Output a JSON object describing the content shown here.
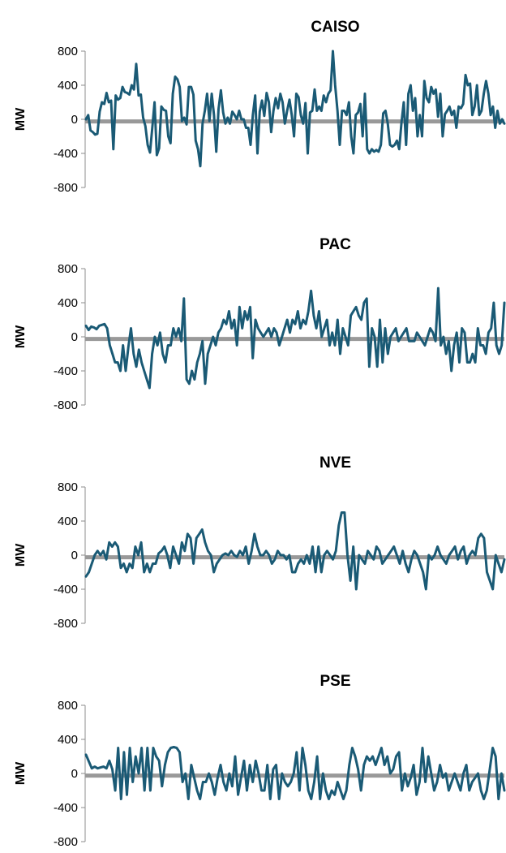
{
  "figure": {
    "series_color": "#1a5a75",
    "zero_line_color": "#999999",
    "axis_color": "#8c8c8c"
  },
  "chart_data": [
    {
      "type": "line",
      "title": "CAISO",
      "ylabel": "MW",
      "xlabel": "",
      "ylim": [
        -800,
        800
      ],
      "yticks": [
        800,
        400,
        0,
        -400,
        -800
      ],
      "ytick_labels": [
        "800",
        "400",
        "0",
        "-400",
        "-800"
      ],
      "grid": false,
      "series": [
        {
          "values": [
            0,
            50,
            -130,
            -150,
            -180,
            -170,
            90,
            200,
            180,
            310,
            200,
            220,
            -350,
            280,
            230,
            250,
            380,
            320,
            310,
            290,
            400,
            350,
            650,
            280,
            290,
            20,
            -80,
            -300,
            -390,
            -100,
            200,
            -420,
            -340,
            150,
            110,
            100,
            -200,
            -280,
            300,
            500,
            470,
            380,
            -20,
            20,
            -60,
            380,
            380,
            290,
            -250,
            -350,
            -550,
            -50,
            100,
            300,
            -20,
            300,
            50,
            -380,
            120,
            340,
            80,
            -50,
            20,
            -50,
            90,
            50,
            0,
            100,
            0,
            0,
            -100,
            -100,
            -300,
            50,
            280,
            -400,
            90,
            220,
            40,
            310,
            200,
            -150,
            100,
            250,
            130,
            300,
            200,
            -50,
            100,
            230,
            50,
            -200,
            300,
            260,
            50,
            -50,
            190,
            -400,
            80,
            100,
            350,
            100,
            150,
            100,
            280,
            200,
            300,
            340,
            800,
            400,
            100,
            -300,
            100,
            100,
            50,
            200,
            -200,
            -400,
            50,
            80,
            180,
            -200,
            300,
            -350,
            -400,
            -350,
            -380,
            -360,
            -380,
            -300,
            70,
            100,
            -50,
            -300,
            -320,
            -300,
            -250,
            -350,
            -40,
            200,
            -300,
            300,
            400,
            100,
            250,
            -200,
            50,
            -200,
            450,
            250,
            200,
            380,
            300,
            350,
            30,
            300,
            -200,
            60,
            100,
            150,
            50,
            100,
            -100,
            150,
            130,
            180,
            520,
            400,
            420,
            50,
            150,
            400,
            50,
            100,
            300,
            450,
            300,
            50,
            150,
            -100,
            100,
            -50,
            0,
            -50
          ]
        }
      ]
    },
    {
      "type": "line",
      "title": "PAC",
      "ylabel": "MW",
      "xlabel": "",
      "ylim": [
        -800,
        800
      ],
      "yticks": [
        800,
        400,
        0,
        -400,
        -800
      ],
      "ytick_labels": [
        "800",
        "400",
        "0",
        "-400",
        "-800"
      ],
      "grid": false,
      "series": [
        {
          "values": [
            130,
            80,
            120,
            110,
            90,
            130,
            140,
            150,
            100,
            -100,
            -200,
            -300,
            -300,
            -400,
            -100,
            -400,
            -120,
            100,
            -200,
            -350,
            -150,
            -300,
            -400,
            -500,
            -600,
            -200,
            0,
            -100,
            50,
            -200,
            -300,
            -100,
            -100,
            100,
            0,
            100,
            -50,
            450,
            -500,
            -550,
            -400,
            -500,
            -300,
            -200,
            -50,
            -550,
            -200,
            -100,
            0,
            -100,
            50,
            100,
            200,
            150,
            300,
            100,
            200,
            -100,
            350,
            100,
            300,
            200,
            350,
            -250,
            200,
            100,
            50,
            0,
            50,
            100,
            0,
            100,
            50,
            -100,
            0,
            100,
            200,
            50,
            200,
            150,
            300,
            100,
            200,
            150,
            300,
            540,
            250,
            100,
            300,
            0,
            100,
            200,
            -100,
            50,
            -100,
            200,
            -200,
            100,
            0,
            -100,
            250,
            300,
            350,
            250,
            200,
            400,
            450,
            -350,
            100,
            0,
            -350,
            200,
            -300,
            100,
            -200,
            0,
            50,
            100,
            -50,
            0,
            50,
            100,
            -50,
            -50,
            -50,
            50,
            0,
            -50,
            -100,
            0,
            100,
            50,
            -50,
            570,
            -100,
            0,
            -200,
            -50,
            -400,
            -100,
            50,
            -300,
            100,
            50,
            -300,
            -300,
            -200,
            -300,
            100,
            -100,
            -100,
            -200,
            50,
            100,
            400,
            -100,
            -200,
            -100,
            400
          ]
        }
      ]
    },
    {
      "type": "line",
      "title": "NVE",
      "ylabel": "MW",
      "xlabel": "",
      "ylim": [
        -800,
        800
      ],
      "yticks": [
        800,
        400,
        0,
        -400,
        -800
      ],
      "ytick_labels": [
        "800",
        "400",
        "0",
        "-400",
        "-800"
      ],
      "grid": false,
      "series": [
        {
          "values": [
            -250,
            -200,
            -100,
            0,
            50,
            0,
            50,
            -50,
            150,
            100,
            150,
            100,
            -150,
            -100,
            -200,
            -100,
            -150,
            100,
            0,
            150,
            -200,
            -100,
            -200,
            -100,
            -100,
            20,
            50,
            100,
            0,
            -150,
            100,
            0,
            -100,
            150,
            50,
            250,
            200,
            -100,
            200,
            250,
            300,
            150,
            50,
            0,
            -200,
            -100,
            -50,
            0,
            20,
            0,
            50,
            0,
            -20,
            50,
            0,
            100,
            -100,
            50,
            250,
            100,
            0,
            0,
            50,
            0,
            -100,
            -50,
            50,
            0,
            0,
            -50,
            0,
            -200,
            -200,
            -100,
            -50,
            -100,
            0,
            -100,
            100,
            -200,
            100,
            -200,
            0,
            50,
            0,
            -50,
            50,
            350,
            500,
            500,
            0,
            -300,
            100,
            -400,
            0,
            -50,
            -100,
            50,
            0,
            -50,
            100,
            50,
            -100,
            -50,
            0,
            50,
            100,
            0,
            -100,
            50,
            -100,
            -200,
            -50,
            50,
            0,
            -100,
            -200,
            -400,
            0,
            -50,
            0,
            100,
            0,
            -50,
            -100,
            0,
            50,
            100,
            -50,
            50,
            100,
            -100,
            0,
            50,
            0,
            200,
            250,
            200,
            -200,
            -300,
            -400,
            0,
            -100,
            -200,
            -50
          ]
        }
      ]
    },
    {
      "type": "line",
      "title": "PSE",
      "ylabel": "MW",
      "xlabel": "",
      "ylim": [
        -800,
        800
      ],
      "yticks": [
        800,
        400,
        0,
        -400,
        -800
      ],
      "ytick_labels": [
        "800",
        "400",
        "0",
        "-400",
        "-800"
      ],
      "grid": false,
      "series": [
        {
          "values": [
            220,
            140,
            60,
            80,
            60,
            70,
            80,
            60,
            150,
            50,
            -200,
            300,
            -300,
            250,
            -250,
            300,
            -100,
            200,
            0,
            300,
            -200,
            300,
            -200,
            300,
            200,
            150,
            -150,
            100,
            250,
            300,
            310,
            300,
            250,
            -100,
            0,
            -300,
            100,
            -50,
            -200,
            -300,
            -100,
            -100,
            0,
            -100,
            -250,
            -50,
            100,
            -100,
            -200,
            0,
            -150,
            200,
            -250,
            -50,
            150,
            -200,
            100,
            -100,
            150,
            0,
            -200,
            -200,
            100,
            -300,
            50,
            100,
            -300,
            0,
            -100,
            -150,
            -100,
            0,
            250,
            -200,
            300,
            100,
            -200,
            -300,
            -100,
            200,
            -300,
            0,
            -200,
            -300,
            -200,
            -250,
            -100,
            -200,
            -300,
            -200,
            100,
            300,
            200,
            50,
            -200,
            100,
            200,
            150,
            200,
            100,
            200,
            300,
            100,
            200,
            0,
            50,
            200,
            250,
            -200,
            0,
            -150,
            -50,
            100,
            -250,
            -100,
            300,
            -100,
            200,
            0,
            -200,
            -100,
            100,
            -50,
            0,
            -200,
            -100,
            0,
            -100,
            -200,
            0,
            100,
            -200,
            -100,
            -50,
            0,
            -200,
            -300,
            -200,
            50,
            300,
            200,
            -300,
            0,
            -200
          ]
        }
      ]
    }
  ]
}
